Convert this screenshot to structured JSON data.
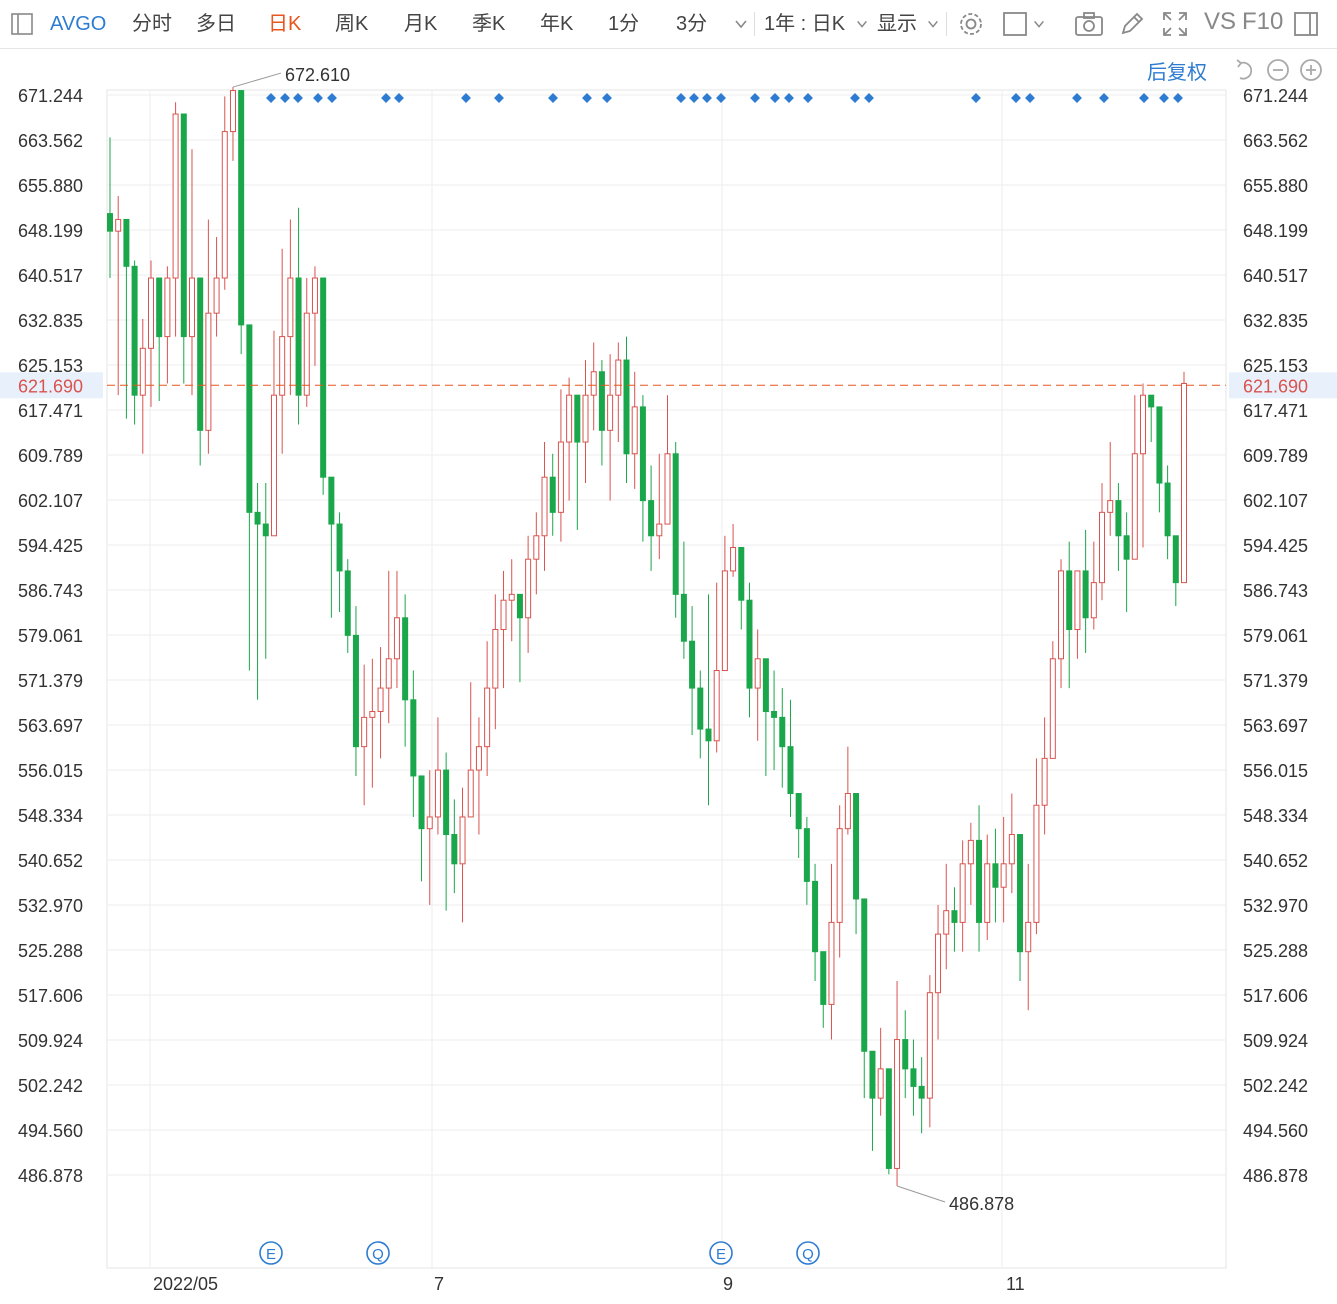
{
  "toolbar": {
    "symbol": "AVGO",
    "tabs": [
      "分时",
      "多日",
      "日K",
      "周K",
      "月K",
      "季K",
      "年K",
      "1分",
      "3分"
    ],
    "active_tab": "日K",
    "range_select": "1年 : 日K",
    "display_label": "显示",
    "vs_label": "VS",
    "f10_label": "F10"
  },
  "restore_label": "后复权",
  "colors": {
    "up": "#d9534f",
    "down": "#1aa64a",
    "accent": "#2d7cd1",
    "active": "#e8561e",
    "price_line": "#e8561e"
  },
  "chart_data": {
    "type": "candlestick",
    "y_ticks": [
      671.244,
      663.562,
      655.88,
      648.199,
      640.517,
      632.835,
      625.153,
      617.471,
      609.789,
      602.107,
      594.425,
      586.743,
      579.061,
      571.379,
      563.697,
      556.015,
      548.334,
      540.652,
      532.97,
      525.288,
      517.606,
      509.924,
      502.242,
      494.56,
      486.878
    ],
    "ylim": [
      482,
      675
    ],
    "x_labels": [
      "2022/05",
      "7",
      "9",
      "11"
    ],
    "current_price": "621.690",
    "max_label": "672.610",
    "min_label": "486.878",
    "event_markers": [
      "E",
      "Q",
      "E",
      "Q"
    ],
    "candles": [
      [
        651,
        648,
        664,
        640
      ],
      [
        648,
        650,
        654,
        620
      ],
      [
        650,
        642,
        648,
        616
      ],
      [
        642,
        620,
        643,
        615
      ],
      [
        620,
        628,
        633,
        610
      ],
      [
        628,
        640,
        643,
        618
      ],
      [
        640,
        630,
        635,
        619
      ],
      [
        630,
        640,
        642,
        622
      ],
      [
        640,
        668,
        670,
        630
      ],
      [
        668,
        630,
        665,
        622
      ],
      [
        630,
        640,
        662,
        620
      ],
      [
        640,
        614,
        640,
        608
      ],
      [
        614,
        634,
        650,
        610
      ],
      [
        634,
        640,
        647,
        630
      ],
      [
        640,
        665,
        671,
        638
      ],
      [
        665,
        672,
        672.6,
        660
      ],
      [
        672,
        632,
        667,
        627
      ],
      [
        632,
        600,
        625,
        573
      ],
      [
        600,
        598,
        605,
        568
      ],
      [
        598,
        596,
        605,
        575
      ],
      [
        596,
        620,
        631,
        600
      ],
      [
        620,
        630,
        645,
        610
      ],
      [
        630,
        640,
        650,
        620
      ],
      [
        640,
        620,
        652,
        615
      ],
      [
        620,
        634,
        640,
        618
      ],
      [
        634,
        640,
        642,
        625
      ],
      [
        640,
        606,
        616,
        603
      ],
      [
        606,
        598,
        605,
        582
      ],
      [
        598,
        590,
        600,
        583
      ],
      [
        590,
        579,
        592,
        576
      ],
      [
        579,
        560,
        584,
        555
      ],
      [
        560,
        565,
        574,
        550
      ],
      [
        565,
        566,
        575,
        553
      ],
      [
        566,
        570,
        577,
        558
      ],
      [
        570,
        575,
        590,
        564
      ],
      [
        575,
        582,
        590,
        570
      ],
      [
        582,
        568,
        586,
        560
      ],
      [
        568,
        555,
        573,
        548
      ],
      [
        555,
        546,
        551,
        537
      ],
      [
        546,
        548,
        556,
        533
      ],
      [
        548,
        556,
        565,
        545
      ],
      [
        556,
        545,
        559,
        532
      ],
      [
        545,
        540,
        551,
        535
      ],
      [
        540,
        548,
        553,
        530
      ],
      [
        548,
        556,
        571,
        553
      ],
      [
        556,
        560,
        565,
        545
      ],
      [
        560,
        570,
        578,
        555
      ],
      [
        570,
        580,
        586,
        563
      ],
      [
        580,
        585,
        590,
        570
      ],
      [
        585,
        586,
        592,
        578
      ],
      [
        586,
        582,
        585,
        571
      ],
      [
        582,
        592,
        596,
        576
      ],
      [
        592,
        596,
        600,
        586
      ],
      [
        596,
        606,
        612,
        590
      ],
      [
        606,
        600,
        610,
        596
      ],
      [
        600,
        612,
        621,
        595
      ],
      [
        612,
        620,
        623,
        602
      ],
      [
        620,
        612,
        614,
        597
      ],
      [
        612,
        620,
        626,
        605
      ],
      [
        620,
        624,
        629,
        614
      ],
      [
        624,
        614,
        626,
        608
      ],
      [
        614,
        620,
        627,
        602
      ],
      [
        620,
        626,
        629,
        612
      ],
      [
        626,
        610,
        630,
        605
      ],
      [
        610,
        618,
        624,
        604
      ],
      [
        618,
        602,
        620,
        595
      ],
      [
        602,
        596,
        608,
        590
      ],
      [
        596,
        598,
        610,
        592
      ],
      [
        598,
        610,
        620,
        603
      ],
      [
        610,
        586,
        612,
        582
      ],
      [
        586,
        578,
        595,
        575
      ],
      [
        578,
        570,
        584,
        562
      ],
      [
        570,
        563,
        573,
        558
      ],
      [
        563,
        561,
        586,
        550
      ],
      [
        561,
        573,
        588,
        559
      ],
      [
        573,
        590,
        596,
        583
      ],
      [
        590,
        594,
        598,
        589
      ],
      [
        594,
        585,
        590,
        580
      ],
      [
        585,
        570,
        588,
        565
      ],
      [
        570,
        575,
        580,
        561
      ],
      [
        575,
        566,
        574,
        555
      ],
      [
        566,
        565,
        573,
        556
      ],
      [
        565,
        560,
        570,
        553
      ],
      [
        560,
        552,
        568,
        548
      ],
      [
        552,
        546,
        551,
        541
      ],
      [
        546,
        537,
        548,
        533
      ],
      [
        537,
        525,
        540,
        520
      ],
      [
        525,
        516,
        520,
        512
      ],
      [
        516,
        530,
        540,
        510
      ],
      [
        530,
        546,
        550,
        524
      ],
      [
        546,
        552,
        560,
        545
      ],
      [
        552,
        534,
        552,
        528
      ],
      [
        534,
        508,
        534,
        500
      ],
      [
        508,
        500,
        505,
        491
      ],
      [
        500,
        505,
        512,
        497
      ],
      [
        505,
        488,
        500,
        487
      ],
      [
        488,
        510,
        520,
        485
      ],
      [
        510,
        505,
        515,
        500
      ],
      [
        505,
        502,
        510,
        497
      ],
      [
        502,
        500,
        507,
        494
      ],
      [
        500,
        518,
        521,
        495
      ],
      [
        518,
        528,
        533,
        510
      ],
      [
        528,
        532,
        540,
        522
      ],
      [
        532,
        530,
        536,
        525
      ],
      [
        530,
        540,
        544,
        525
      ],
      [
        540,
        544,
        547,
        533
      ],
      [
        544,
        530,
        550,
        525
      ],
      [
        530,
        540,
        545,
        527
      ],
      [
        540,
        536,
        546,
        530
      ],
      [
        536,
        540,
        548,
        530
      ],
      [
        540,
        545,
        552,
        535
      ],
      [
        545,
        525,
        545,
        520
      ],
      [
        525,
        530,
        540,
        515
      ],
      [
        530,
        550,
        558,
        528
      ],
      [
        550,
        558,
        565,
        545
      ],
      [
        558,
        575,
        578,
        560
      ],
      [
        575,
        590,
        592,
        570
      ],
      [
        590,
        580,
        595,
        570
      ],
      [
        580,
        590,
        590,
        575
      ],
      [
        590,
        582,
        597,
        576
      ],
      [
        582,
        588,
        595,
        580
      ],
      [
        588,
        600,
        605,
        585
      ],
      [
        600,
        602,
        612,
        596
      ],
      [
        602,
        596,
        605,
        590
      ],
      [
        596,
        592,
        600,
        583
      ],
      [
        592,
        610,
        620,
        600
      ],
      [
        610,
        620,
        622,
        594
      ],
      [
        620,
        618,
        620,
        612
      ],
      [
        618,
        605,
        612,
        600
      ],
      [
        605,
        596,
        608,
        592
      ],
      [
        596,
        588,
        591,
        584
      ],
      [
        588,
        622,
        624,
        610
      ]
    ]
  }
}
